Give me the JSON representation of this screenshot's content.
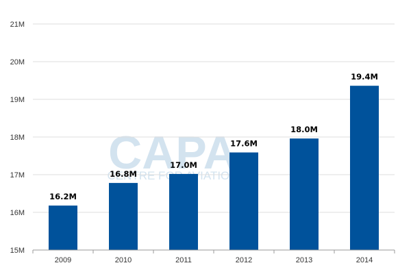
{
  "watermark": {
    "logo_text": "CAPA",
    "sub_text": "CENTRE FOR AVIATION",
    "color": "#cfe0ee"
  },
  "colors": {
    "bar": "#00529b",
    "grid": "#dddddd",
    "axis": "#999999"
  },
  "chart_data": {
    "type": "bar",
    "title": "",
    "xlabel": "",
    "ylabel": "",
    "categories": [
      "2009",
      "2010",
      "2011",
      "2012",
      "2013",
      "2014"
    ],
    "values": [
      16.18,
      16.78,
      17.02,
      17.59,
      17.96,
      19.36
    ],
    "data_labels": [
      "16.2M",
      "16.8M",
      "17.0M",
      "17.6M",
      "18.0M",
      "19.4M"
    ],
    "ylim": [
      15,
      21
    ],
    "y_ticks": [
      15,
      16,
      17,
      18,
      19,
      20,
      21
    ],
    "y_tick_labels": [
      "15M",
      "16M",
      "17M",
      "18M",
      "19M",
      "20M",
      "21M"
    ],
    "grid": true,
    "legend": "none"
  }
}
